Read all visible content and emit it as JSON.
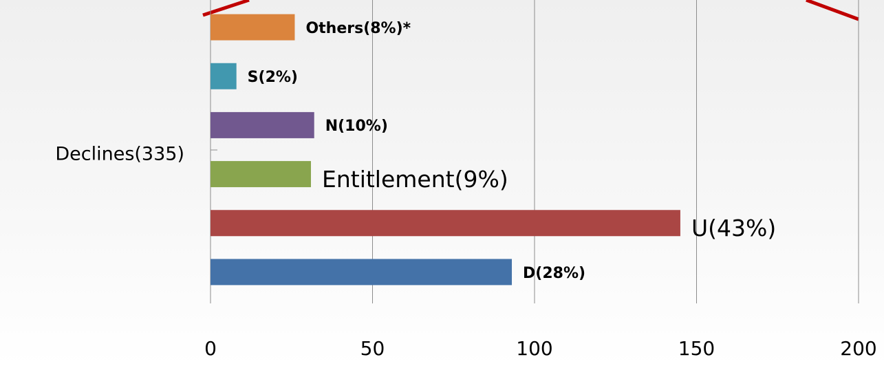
{
  "chart_data": {
    "type": "bar",
    "orientation": "horizontal",
    "categories": [
      "Declines(335)"
    ],
    "series": [
      {
        "color": "#4472a8",
        "values": [
          93
        ],
        "value_labels": [
          "D(28%)"
        ],
        "label_font": "bold"
      },
      {
        "color": "#aa4644",
        "values": [
          145
        ],
        "value_labels": [
          "U(43%)"
        ],
        "label_font": "large"
      },
      {
        "color": "#89a54e",
        "values": [
          31
        ],
        "value_labels": [
          "Entitlement(9%)"
        ],
        "label_font": "large"
      },
      {
        "color": "#71588f",
        "values": [
          32
        ],
        "value_labels": [
          "N(10%)"
        ],
        "label_font": "bold"
      },
      {
        "color": "#4198af",
        "values": [
          8
        ],
        "value_labels": [
          "S(2%)"
        ],
        "label_font": "bold"
      },
      {
        "color": "#db843d",
        "values": [
          26
        ],
        "value_labels": [
          "Others(8%)*"
        ],
        "label_font": "bold"
      }
    ],
    "xlim": [
      0,
      200
    ],
    "xticks": [
      0,
      50,
      100,
      150,
      200
    ],
    "grid": true
  }
}
